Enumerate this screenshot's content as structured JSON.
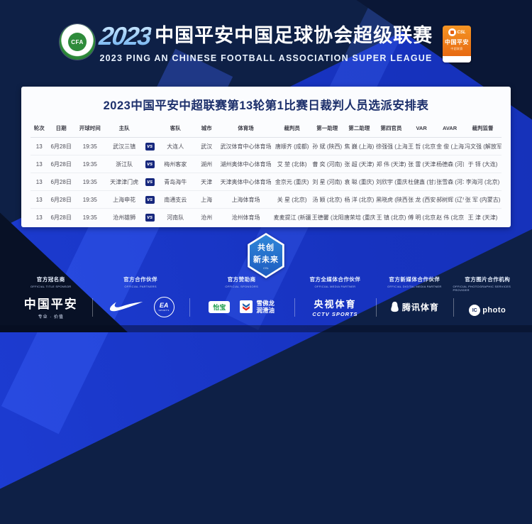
{
  "header": {
    "title_year": "2023",
    "title_cn": "中国平安中国足球协会超级联赛",
    "title_en": "2023 PING AN CHINESE FOOTBALL ASSOCIATION SUPER LEAGUE",
    "cfa_logo_text": "CFA",
    "csl_logo": {
      "csl": "CSL",
      "brand": "中国平安",
      "sub": "中超联赛"
    }
  },
  "table": {
    "title": "2023中国平安中超联赛第13轮第1比赛日裁判人员选派安排表",
    "columns": [
      "轮次",
      "日期",
      "开球时间",
      "主队",
      "客队",
      "城市",
      "体育场",
      "裁判员",
      "第一助理",
      "第二助理",
      "第四官员",
      "VAR",
      "AVAR",
      "裁判监督"
    ],
    "vs_label": "vs",
    "rows": [
      {
        "round": "13",
        "date": "6月28日",
        "time": "19:35",
        "home": "武汉三镇",
        "away": "大连人",
        "city": "武汉",
        "stadium": "武汉体育中心体育场",
        "referee": "唐顺齐 (成都)",
        "ar1": "孙 斌 (陕西)",
        "ar2": "焦 巍 (上海)",
        "fourth": "徐强强 (上海)",
        "var": "王 哲 (北京)",
        "avar": "金 俊 (上海)",
        "supervisor": "冯文强 (解放军)"
      },
      {
        "round": "13",
        "date": "6月28日",
        "time": "19:35",
        "home": "浙江队",
        "away": "梅州客家",
        "city": "湖州",
        "stadium": "湖州奥体中心体育场",
        "referee": "艾 堃 (北体)",
        "ar1": "曹 奕 (河南)",
        "ar2": "张 超 (天津)",
        "fourth": "郑 伟 (天津)",
        "var": "张 雷 (天津)",
        "avar": "杨德森 (河南)",
        "supervisor": "于 铎 (大连)"
      },
      {
        "round": "13",
        "date": "6月28日",
        "time": "19:35",
        "home": "天津津门虎",
        "away": "青岛海牛",
        "city": "天津",
        "stadium": "天津奥体中心体育场",
        "referee": "金京元 (重庆)",
        "ar1": "刘 星 (河南)",
        "ar2": "袁 聪 (重庆)",
        "fourth": "刘欣宇 (重庆)",
        "var": "杜健鑫 (甘肃)",
        "avar": "张雪森 (河北)",
        "supervisor": "李海河 (北京)"
      },
      {
        "round": "13",
        "date": "6月28日",
        "time": "19:35",
        "home": "上海申花",
        "away": "南通支云",
        "city": "上海",
        "stadium": "上海体育场",
        "referee": "关 星 (北京)",
        "ar1": "汤 颖 (北京)",
        "ar2": "杨 洋 (北京)",
        "fourth": "黑晓虎 (陕西)",
        "var": "张 龙 (西安)",
        "avar": "郝树辉 (辽宁)",
        "supervisor": "张 军 (内蒙古)"
      },
      {
        "round": "13",
        "date": "6月28日",
        "time": "19:35",
        "home": "沧州雄狮",
        "away": "河南队",
        "city": "沧州",
        "stadium": "沧州体育场",
        "referee": "麦麦提江 (新疆)",
        "ar1": "王德馨 (沈阳)",
        "ar2": "唐荣培 (重庆)",
        "fourth": "王 镇 (北京)",
        "var": "傅 明 (北京)",
        "avar": "赵 伟 (北京)",
        "supervisor": "王 津 (天津)"
      }
    ]
  },
  "badge": {
    "line1": "共创",
    "line2": "新未来",
    "sub": "CSL"
  },
  "footer": {
    "sections": [
      {
        "label_cn": "官方冠名商",
        "label_en": "OFFICIAL TITLE SPONSOR"
      },
      {
        "label_cn": "官方合作伙伴",
        "label_en": "OFFICIAL PARTNERS"
      },
      {
        "label_cn": "官方赞助商",
        "label_en": "OFFICIAL SPONSORS"
      },
      {
        "label_cn": "官方全媒体合作伙伴",
        "label_en": "OFFICIAL MEDIA PARTNER"
      },
      {
        "label_cn": "官方新媒体合作伙伴",
        "label_en": "OFFICIAL DIGITAL MEDIA PARTNER"
      },
      {
        "label_cn": "官方图片合作机构",
        "label_en": "OFFICIAL PHOTOGRAPHIC SERVICES PROVIDER"
      }
    ],
    "logo_text": {
      "pingan": "中国平安",
      "pingan_sub": "专业 · 价值",
      "ea": "EA",
      "ea_sub": "SPORTS",
      "cestbon": "怡宝",
      "chevron1": "雪佛龙",
      "chevron2": "润滑油",
      "cctv1": "央视体育",
      "cctv2": "CCTV SPORTS",
      "tencent": "腾讯体育",
      "ic": "IC",
      "icphoto": "photo"
    }
  },
  "colors": {
    "bg_navy": "#0e2046",
    "bright_blue": "#1733c0",
    "card_bg": "#fbfcfe",
    "title_navy": "#1c2f6b",
    "vs_badge": "#16277d",
    "csl_orange": "#e4600e",
    "cfa_green": "#2e8b3a",
    "hex_blue": "#1d5cc0"
  }
}
